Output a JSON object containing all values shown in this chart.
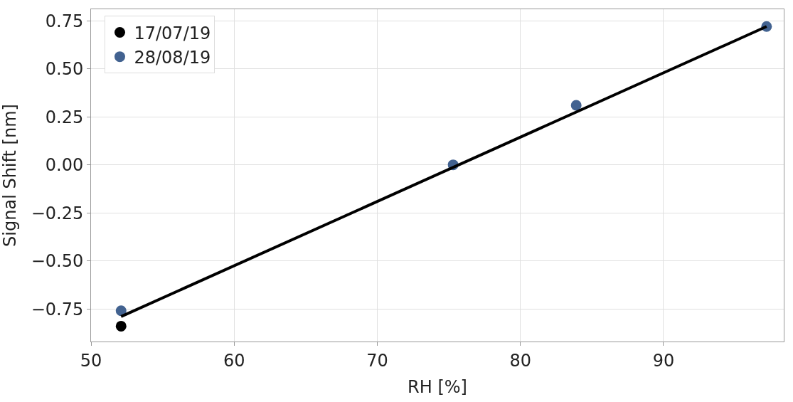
{
  "chart_data": {
    "type": "scatter",
    "xlabel": "RH [%]",
    "ylabel": "Signal Shift [nm]",
    "series": [
      {
        "name": "17/07/19",
        "color": "#000000",
        "x": [
          52.1
        ],
        "values": [
          -0.84
        ]
      },
      {
        "name": "28/08/19",
        "color": "#426290",
        "x": [
          52.1,
          75.3,
          83.9,
          97.2
        ],
        "values": [
          -0.76,
          0.0,
          0.31,
          0.72
        ]
      },
      {
        "type": "line",
        "color": "#000000",
        "x": [
          52.1,
          97.2
        ],
        "values": [
          -0.79,
          0.72
        ],
        "marker": "none"
      }
    ],
    "xlim": [
      50,
      98.4
    ],
    "xticks": [
      50,
      60,
      70,
      80,
      90
    ],
    "ylim": [
      -0.92,
      0.81
    ],
    "yticks": [
      {
        "value": -0.75,
        "label": "−0.75"
      },
      {
        "value": -0.5,
        "label": "−0.50"
      },
      {
        "value": -0.25,
        "label": "−0.25"
      },
      {
        "value": 0,
        "label": "0.00"
      },
      {
        "value": 0.25,
        "label": "0.25"
      },
      {
        "value": 0.5,
        "label": "0.50"
      },
      {
        "value": 0.75,
        "label": "0.75"
      }
    ],
    "grid": true,
    "legend": "top left",
    "marker": "circle"
  }
}
